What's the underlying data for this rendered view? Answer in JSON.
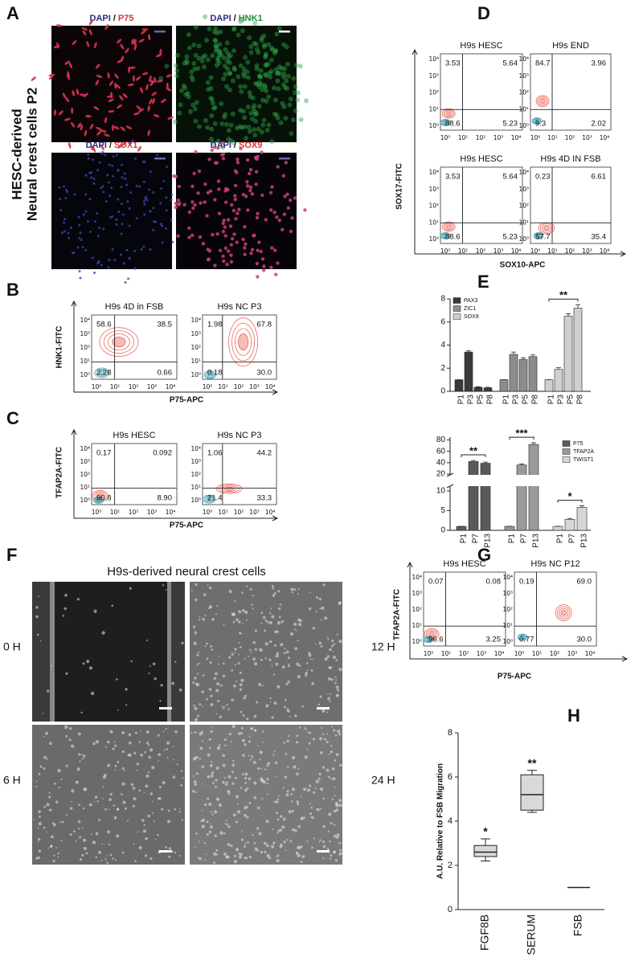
{
  "flow_ticks": [
    "10⁰",
    "10¹",
    "10²",
    "10³",
    "10⁴"
  ],
  "flow_colors": [
    "#e5584a",
    "#2b98ad"
  ],
  "panels": {
    "A": {
      "letter": "A",
      "side_label": [
        "HESC-derived",
        "Neural crest cells P2"
      ],
      "stain_color": "#2d2d7a",
      "images": [
        {
          "stain": "DAPI",
          "separator": "/",
          "marker": "P75",
          "marker_color": "#e0303a"
        },
        {
          "stain": "DAPI",
          "separator": "/",
          "marker": "HNK1",
          "marker_color": "#1f8a3a"
        },
        {
          "stain": "DAPI",
          "separator": "/",
          "marker": "SOX1",
          "marker_color": "#e0303a"
        },
        {
          "stain": "DAPI",
          "separator": "/",
          "marker": "SOX9",
          "marker_color": "#e0303a"
        }
      ]
    },
    "B": {
      "letter": "B",
      "y_label": "HNK1-FITC",
      "x_label": "P75-APC",
      "plots": [
        {
          "title": "H9s 4D in FSB",
          "quadrants": {
            "ul": "58.6",
            "ur": "38.5",
            "ll": "2.28",
            "lr": "0.66"
          }
        },
        {
          "title": "H9s NC P3",
          "quadrants": {
            "ul": "1.98",
            "ur": "67.8",
            "ll": "0.18",
            "lr": "30.0"
          }
        }
      ]
    },
    "C": {
      "letter": "C",
      "y_label": "TFAP2A-FITC",
      "x_label": "P75-APC",
      "plots": [
        {
          "title": "H9s HESC",
          "quadrants": {
            "ul": "0.17",
            "ur": "0.092",
            "ll": "90.8",
            "lr": "8.90"
          }
        },
        {
          "title": "H9s NC P3",
          "quadrants": {
            "ul": "1.06",
            "ur": "44.2",
            "ll": "21.4",
            "lr": "33.3"
          }
        }
      ]
    },
    "D": {
      "letter": "D",
      "y_label": "SOX17-FITC",
      "x_label": "SOX10-APC",
      "plots": [
        {
          "title": "H9s HESC",
          "quadrants": {
            "ul": "3.53",
            "ur": "5.64",
            "ll": "88.6",
            "lr": "5.23"
          }
        },
        {
          "title": "H9s END",
          "quadrants": {
            "ul": "84.7",
            "ur": "3.96",
            "ll": "9.3",
            "lr": "2.02"
          }
        },
        {
          "title": "H9s HESC",
          "quadrants": {
            "ul": "3.53",
            "ur": "5.64",
            "ll": "88.6",
            "lr": "5.23"
          }
        },
        {
          "title": "H9s 4D IN FSB",
          "quadrants": {
            "ul": "0.23",
            "ur": "6.61",
            "ll": "57.7",
            "lr": "35.4"
          }
        }
      ]
    },
    "E": {
      "letter": "E",
      "charts": [
        {
          "type": "bar",
          "ylim": [
            0,
            8
          ],
          "yticks": [
            0,
            2,
            4,
            6,
            8
          ],
          "categories": [
            "P1",
            "P3",
            "P5",
            "P8"
          ],
          "series": [
            {
              "name": "PAX3",
              "color": "#3a3a3a",
              "values": [
                1,
                3.4,
                0.35,
                0.3
              ],
              "errors": [
                0,
                0.1,
                0.05,
                0.05
              ]
            },
            {
              "name": "ZIC1",
              "color": "#8c8c8c",
              "values": [
                1,
                3.2,
                2.75,
                3.0
              ],
              "errors": [
                0,
                0.2,
                0.15,
                0.15
              ]
            },
            {
              "name": "SOX9",
              "color": "#cfcfcf",
              "values": [
                1,
                1.9,
                6.5,
                7.2
              ],
              "errors": [
                0,
                0.15,
                0.2,
                0.3
              ],
              "significance": "**"
            }
          ]
        },
        {
          "type": "bar",
          "segments": [
            {
              "ylim": [
                0,
                11
              ],
              "yticks": [
                0,
                5,
                10
              ]
            },
            {
              "ylim": [
                20,
                85
              ],
              "yticks": [
                20,
                40,
                60,
                80
              ]
            }
          ],
          "categories": [
            "P1",
            "P7",
            "P13"
          ],
          "series": [
            {
              "name": "P75",
              "color": "#5a5a5a",
              "values": [
                1,
                42,
                39
              ],
              "errors": [
                0,
                2,
                2
              ],
              "significance": "**"
            },
            {
              "name": "TFAP2A",
              "color": "#9a9a9a",
              "values": [
                1,
                36,
                72
              ],
              "errors": [
                0,
                2,
                3
              ],
              "significance": "***"
            },
            {
              "name": "TWIST1",
              "color": "#d6d6d6",
              "values": [
                1,
                2.8,
                5.8
              ],
              "errors": [
                0,
                0.2,
                0.4
              ],
              "significance": "*"
            }
          ]
        }
      ]
    },
    "F": {
      "letter": "F",
      "title": "H9s-derived neural crest cells",
      "images": [
        {
          "label": "0 H"
        },
        {
          "label": "12 H"
        },
        {
          "label": "6 H"
        },
        {
          "label": "24 H"
        }
      ]
    },
    "G": {
      "letter": "G",
      "y_label": "TFAP2A-FITC",
      "x_label": "P75-APC",
      "plots": [
        {
          "title": "H9s HESC",
          "quadrants": {
            "ul": "0.07",
            "ur": "0.08",
            "ll": "96.6",
            "lr": "3.25"
          }
        },
        {
          "title": "H9s NC P12",
          "quadrants": {
            "ul": "0.19",
            "ur": "69.0",
            "ll": "0.77",
            "lr": "30.0"
          }
        }
      ]
    },
    "H": {
      "letter": "H",
      "type": "box",
      "y_label": "A.U. Relative to FSB Migration",
      "ylim": [
        0,
        8
      ],
      "yticks": [
        0,
        2,
        4,
        6,
        8
      ],
      "categories": [
        "FGF8B",
        "SERUM",
        "FSB"
      ],
      "boxes": [
        {
          "min": 2.2,
          "q1": 2.4,
          "median": 2.6,
          "q3": 2.9,
          "max": 3.2
        },
        {
          "min": 4.4,
          "q1": 4.5,
          "median": 5.2,
          "q3": 6.1,
          "max": 6.3
        },
        {
          "min": 1,
          "q1": 1,
          "median": 1,
          "q3": 1,
          "max": 1
        }
      ],
      "significance": [
        "*",
        "**",
        null
      ]
    }
  }
}
